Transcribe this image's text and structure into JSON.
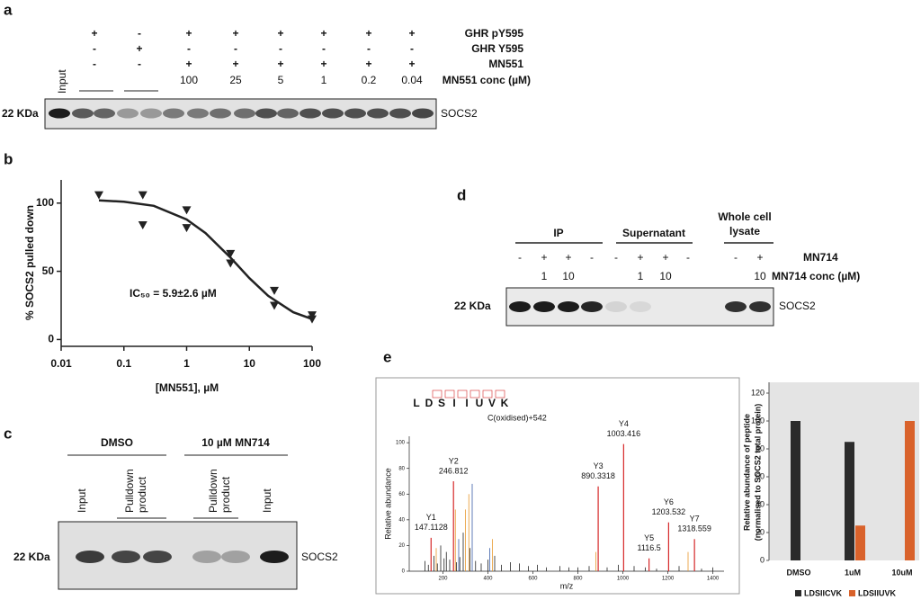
{
  "panels": {
    "a": {
      "label": "a",
      "rows": [
        {
          "name": "GHR pY595",
          "signs": [
            "+",
            "-",
            "+",
            "+",
            "+",
            "+",
            "+",
            "+"
          ]
        },
        {
          "name": "GHR Y595",
          "signs": [
            "-",
            "+",
            "-",
            "-",
            "-",
            "-",
            "-",
            "-"
          ]
        },
        {
          "name": "MN551",
          "signs": [
            "-",
            "-",
            "+",
            "+",
            "+",
            "+",
            "+",
            "+"
          ]
        }
      ],
      "conc_label": "MN551 conc (µM)",
      "conc": [
        100,
        25,
        5,
        1,
        0.2,
        0.04
      ],
      "input": "Input",
      "marker": "22 KDa",
      "protein": "SOCS2"
    },
    "b": {
      "label": "b"
    },
    "c": {
      "label": "c",
      "groups": [
        "DMSO",
        "10 µM MN714"
      ],
      "lanes": [
        [
          "Input"
        ],
        [
          "Pulldown",
          "product"
        ],
        [
          "Pulldown",
          "product"
        ],
        [
          "Input"
        ]
      ],
      "marker": "22 KDa",
      "protein": "SOCS2"
    },
    "d": {
      "label": "d",
      "groups": [
        [
          "IP"
        ],
        [
          "Supernatant"
        ],
        [
          "Whole cell",
          "lysate"
        ]
      ],
      "treatment": "MN714",
      "signs": [
        "-",
        "+",
        "+",
        "-",
        "-",
        "+",
        "+",
        "-",
        "-",
        "+"
      ],
      "conc_label": "MN714 conc (µM)",
      "conc": [
        null,
        1,
        10,
        null,
        null,
        1,
        10,
        null,
        null,
        10
      ],
      "marker": "22 KDa",
      "protein": "SOCS2"
    },
    "e": {
      "label": "e"
    }
  },
  "chart_data": [
    {
      "type": "scatter",
      "xlog": true,
      "color": "#222222",
      "marker": "triangle-down",
      "x": [
        0.04,
        0.2,
        0.2,
        1,
        1,
        5,
        5,
        25,
        25,
        100,
        100
      ],
      "values": [
        106,
        106,
        84,
        95,
        82,
        63,
        56,
        36,
        25,
        18,
        15
      ],
      "fit": {
        "x": [
          0.04,
          0.1,
          0.3,
          1,
          2,
          5,
          10,
          20,
          50,
          100
        ],
        "values": [
          102,
          101,
          98,
          88,
          78,
          60,
          45,
          32,
          20,
          15
        ]
      },
      "xlim": [
        0.01,
        100
      ],
      "ylim": [
        -5,
        117
      ],
      "xticks": [
        0.01,
        0.1,
        1,
        10,
        100
      ],
      "yticks": [
        0,
        50,
        100
      ],
      "xlabel": "[MN551], µM",
      "ylabel": "% SOCS2 pulled down",
      "annotation": "IC₅₀ = 5.9±2.6 µM"
    },
    {
      "type": "spectrum",
      "sequence": [
        "L",
        "D",
        "S",
        "I",
        "I",
        "U",
        "V",
        "K"
      ],
      "modification": "C(oxidised)+542",
      "xlabel": "m/z",
      "ylabel": "Relative abundance",
      "xlim": [
        50,
        1450
      ],
      "ylim": [
        0,
        105
      ],
      "xticks": [
        200,
        400,
        600,
        800,
        1000,
        1200,
        1400
      ],
      "yticks": [
        0,
        20,
        40,
        60,
        80,
        100
      ],
      "series": [
        {
          "color": "#222222",
          "x": [
            120,
            135,
            160,
            175,
            190,
            205,
            215,
            230,
            260,
            275,
            290,
            320,
            345,
            370,
            400,
            430,
            460,
            500,
            540,
            580,
            620,
            660,
            720,
            760,
            800,
            850,
            930,
            980,
            1050,
            1100,
            1150,
            1250,
            1350,
            1400
          ],
          "values": [
            8,
            5,
            12,
            6,
            20,
            10,
            15,
            9,
            7,
            11,
            30,
            18,
            8,
            6,
            9,
            12,
            5,
            7,
            6,
            4,
            5,
            3,
            4,
            3,
            3,
            4,
            3,
            5,
            4,
            3,
            2,
            4,
            2,
            3
          ]
        },
        {
          "color": "#e8962a",
          "x": [
            170,
            255,
            300,
            315,
            420,
            880,
            1290
          ],
          "values": [
            18,
            48,
            48,
            60,
            25,
            15,
            15
          ]
        },
        {
          "color": "#3b5ea8",
          "x": [
            270,
            330,
            408
          ],
          "values": [
            25,
            68,
            18
          ]
        },
        {
          "color": "#d62728",
          "x": [
            147.1128,
            246.812,
            890.3318,
            1003.416,
            1116.5,
            1203.532,
            1318.559
          ],
          "values": [
            26,
            70,
            66,
            99,
            10,
            38,
            25
          ],
          "labels": [
            "Y1",
            "Y2",
            "Y3",
            "Y4",
            "Y5",
            "Y6",
            "Y7"
          ]
        }
      ]
    },
    {
      "type": "bar",
      "categories": [
        "DMSO",
        "1uM",
        "10uM"
      ],
      "series": [
        {
          "name": "LDSIICVK",
          "color": "#2b2b2b",
          "values": [
            100,
            85,
            0
          ]
        },
        {
          "name": "LDSIIUVK",
          "color": "#d9622b",
          "values": [
            0,
            25,
            100
          ]
        }
      ],
      "ylim": [
        0,
        120
      ],
      "yticks": [
        0,
        20,
        40,
        60,
        80,
        100,
        120
      ],
      "ylabel": [
        "Relative abundance of peptide",
        "(normalised to SOCS2 total protein)"
      ],
      "background": "#e4e4e4",
      "legend": "bottom"
    }
  ]
}
